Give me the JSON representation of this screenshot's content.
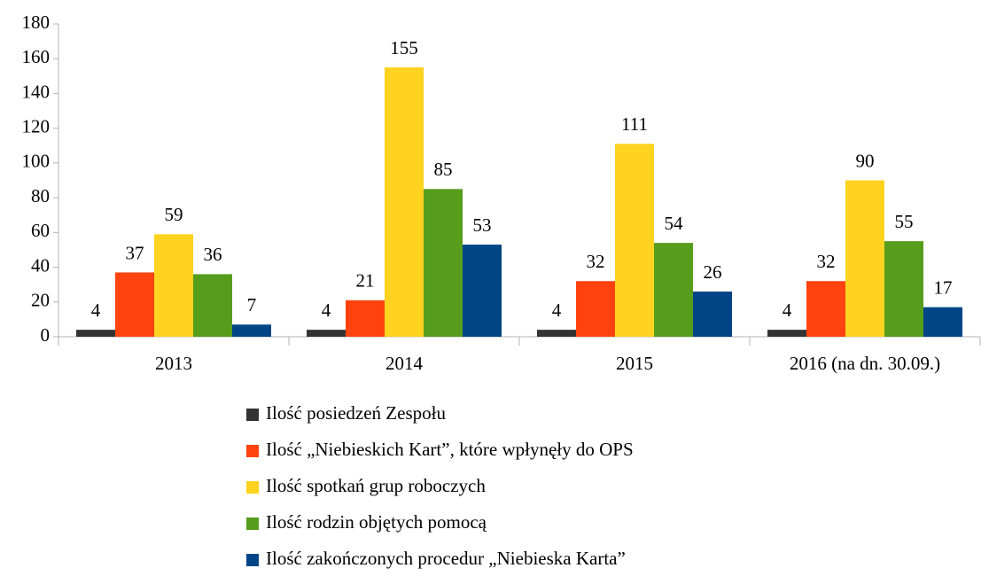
{
  "chart_data": {
    "type": "bar",
    "categories": [
      "2013",
      "2014",
      "2015",
      "2016 (na dn. 30.09.)"
    ],
    "series": [
      {
        "name": "Ilość posiedzeń Zespołu",
        "color": "#333333",
        "values": [
          4,
          4,
          4,
          4
        ]
      },
      {
        "name": "Ilość „Niebieskich Kart”, które wpłynęły do OPS",
        "color": "#ff420e",
        "values": [
          37,
          21,
          32,
          32
        ]
      },
      {
        "name": "Ilość spotkań grup roboczych",
        "color": "#ffd320",
        "values": [
          59,
          155,
          111,
          90
        ]
      },
      {
        "name": "Ilość rodzin objętych pomocą",
        "color": "#579d1c",
        "values": [
          36,
          85,
          54,
          55
        ]
      },
      {
        "name": "Ilość zakończonych procedur „Niebieska Karta”",
        "color": "#004586",
        "values": [
          7,
          53,
          26,
          17
        ]
      }
    ],
    "ylim": [
      0,
      180
    ],
    "yticks": [
      0,
      20,
      40,
      60,
      80,
      100,
      120,
      140,
      160,
      180
    ],
    "grid": false,
    "legend": "bottom"
  }
}
